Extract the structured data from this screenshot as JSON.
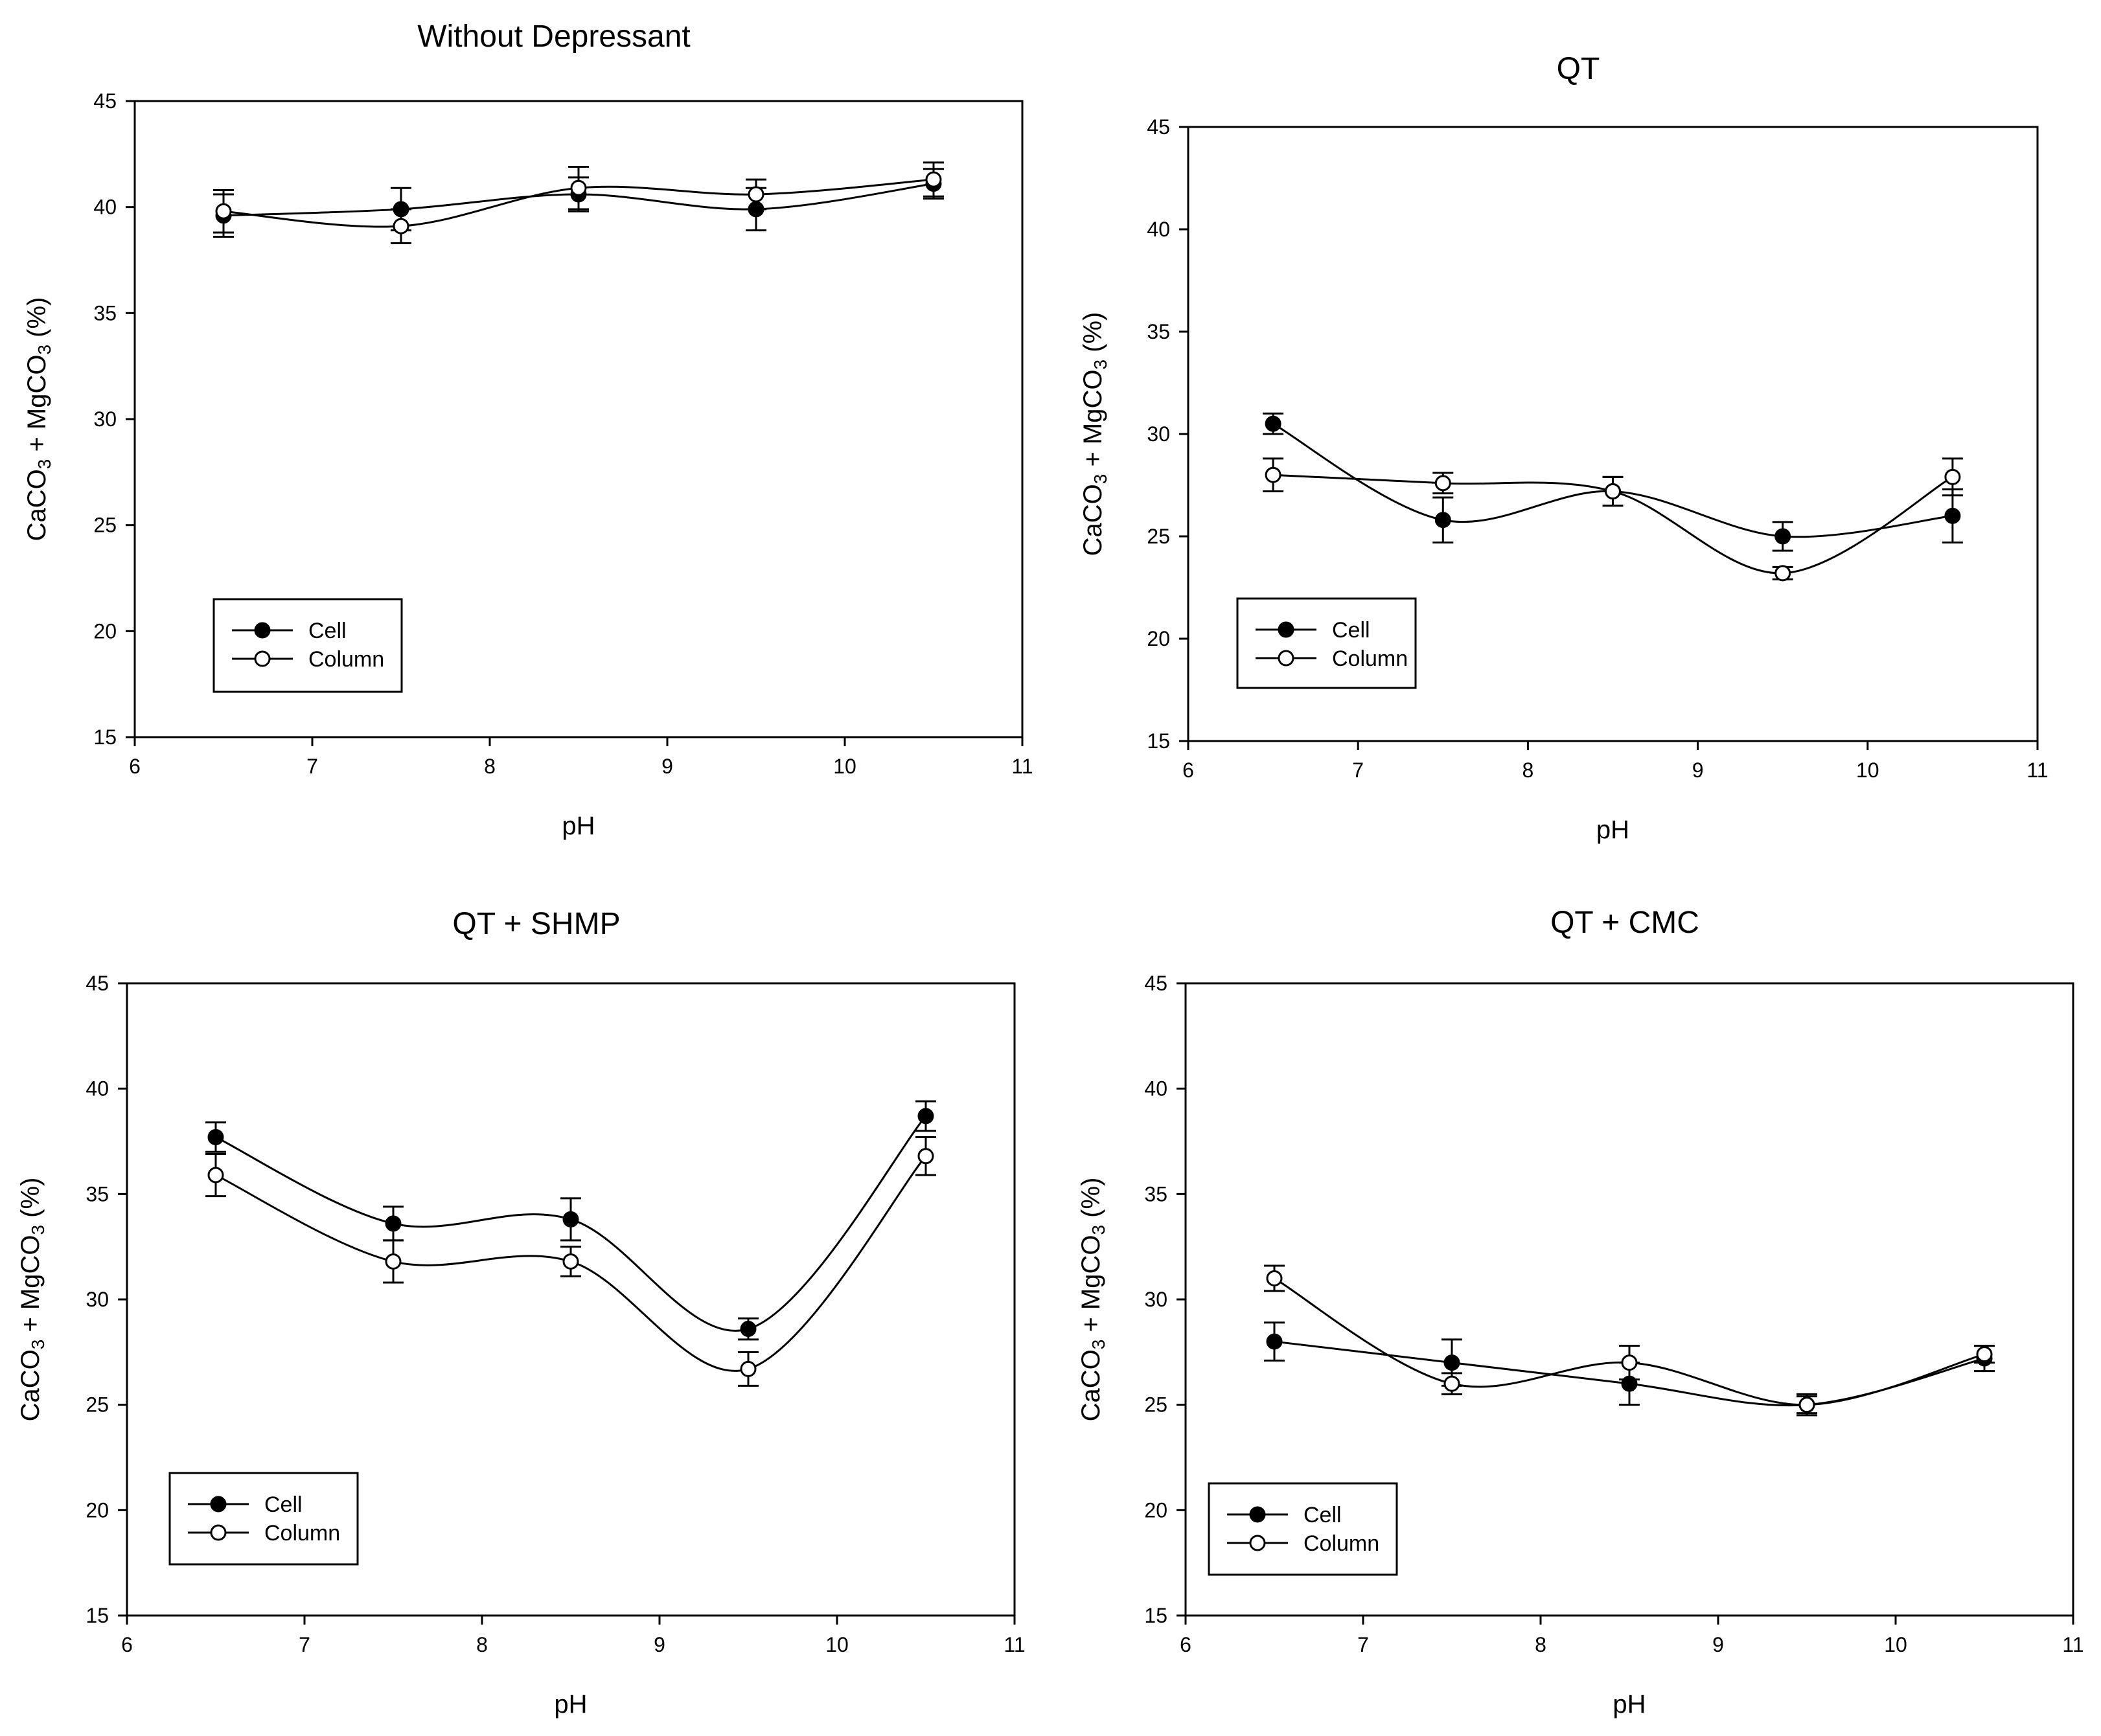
{
  "chart_data": [
    {
      "type": "line",
      "title": "Without Depressant",
      "xlabel": "pH",
      "ylabel": {
        "base": "CaCO",
        "sub1": "3",
        "mid": " + MgCO",
        "sub2": "3",
        "tail": " (%)"
      },
      "xlim": [
        6,
        11
      ],
      "ylim": [
        15,
        45
      ],
      "xticks": [
        "6",
        "7",
        "8",
        "9",
        "10",
        "11"
      ],
      "yticks": [
        "15",
        "20",
        "25",
        "30",
        "35",
        "40",
        "45"
      ],
      "legend": {
        "placement": "bottom-left",
        "entries": [
          "Cell",
          "Column"
        ]
      },
      "series": [
        {
          "name": "Cell",
          "marker": "filled-circle",
          "x": [
            6.5,
            7.5,
            8.5,
            9.5,
            10.5
          ],
          "y": [
            39.6,
            39.9,
            40.6,
            39.9,
            41.1
          ],
          "err": [
            1.0,
            1.0,
            0.8,
            1.0,
            0.7
          ]
        },
        {
          "name": "Column",
          "marker": "open-circle",
          "x": [
            6.5,
            7.5,
            8.5,
            9.5,
            10.5
          ],
          "y": [
            39.8,
            39.1,
            40.9,
            40.6,
            41.3
          ],
          "err": [
            1.0,
            0.8,
            1.0,
            0.7,
            0.8
          ]
        }
      ]
    },
    {
      "type": "line",
      "title": "QT",
      "xlabel": "pH",
      "ylabel": {
        "base": "CaCO",
        "sub1": "3",
        "mid": " + MgCO",
        "sub2": "3",
        "tail": " (%)"
      },
      "xlim": [
        6,
        11
      ],
      "ylim": [
        15,
        45
      ],
      "xticks": [
        "6",
        "7",
        "8",
        "9",
        "10",
        "11"
      ],
      "yticks": [
        "15",
        "20",
        "25",
        "30",
        "35",
        "40",
        "45"
      ],
      "legend": {
        "placement": "bottom-left",
        "entries": [
          "Cell",
          "Column"
        ]
      },
      "series": [
        {
          "name": "Cell",
          "marker": "filled-circle",
          "x": [
            6.5,
            7.5,
            8.5,
            9.5,
            10.5
          ],
          "y": [
            30.5,
            25.8,
            27.2,
            25.0,
            26.0
          ],
          "err": [
            0.5,
            1.1,
            0.7,
            0.7,
            1.3
          ]
        },
        {
          "name": "Column",
          "marker": "open-circle",
          "x": [
            6.5,
            7.5,
            8.5,
            9.5,
            10.5
          ],
          "y": [
            28.0,
            27.6,
            27.2,
            23.2,
            27.9
          ],
          "err": [
            0.8,
            0.5,
            0.7,
            0.3,
            0.9
          ]
        }
      ]
    },
    {
      "type": "line",
      "title": "QT + SHMP",
      "xlabel": "pH",
      "ylabel": {
        "base": "CaCO",
        "sub1": "3",
        "mid": " + MgCO",
        "sub2": "3",
        "tail": " (%)"
      },
      "xlim": [
        6,
        11
      ],
      "ylim": [
        15,
        45
      ],
      "xticks": [
        "6",
        "7",
        "8",
        "9",
        "10",
        "11"
      ],
      "yticks": [
        "15",
        "20",
        "25",
        "30",
        "35",
        "40",
        "45"
      ],
      "legend": {
        "placement": "bottom-left",
        "entries": [
          "Cell",
          "Column"
        ]
      },
      "series": [
        {
          "name": "Cell",
          "marker": "filled-circle",
          "x": [
            6.5,
            7.5,
            8.5,
            9.5,
            10.5
          ],
          "y": [
            37.7,
            33.6,
            33.8,
            28.6,
            38.7
          ],
          "err": [
            0.7,
            0.8,
            1.0,
            0.5,
            0.7
          ]
        },
        {
          "name": "Column",
          "marker": "open-circle",
          "x": [
            6.5,
            7.5,
            8.5,
            9.5,
            10.5
          ],
          "y": [
            35.9,
            31.8,
            31.8,
            26.7,
            36.8
          ],
          "err": [
            1.0,
            1.0,
            0.7,
            0.8,
            0.9
          ]
        }
      ]
    },
    {
      "type": "line",
      "title": "QT + CMC",
      "xlabel": "pH",
      "ylabel": {
        "base": "CaCO",
        "sub1": "3",
        "mid": " + MgCO",
        "sub2": "3",
        "tail": " (%)"
      },
      "xlim": [
        6,
        11
      ],
      "ylim": [
        15,
        45
      ],
      "xticks": [
        "6",
        "7",
        "8",
        "9",
        "10",
        "11"
      ],
      "yticks": [
        "15",
        "20",
        "25",
        "30",
        "35",
        "40",
        "45"
      ],
      "legend": {
        "placement": "bottom-left",
        "entries": [
          "Cell",
          "Column"
        ]
      },
      "series": [
        {
          "name": "Cell",
          "marker": "filled-circle",
          "x": [
            6.5,
            7.5,
            8.5,
            9.5,
            10.5
          ],
          "y": [
            28.0,
            27.0,
            26.0,
            25.0,
            27.2
          ],
          "err": [
            0.9,
            1.1,
            1.0,
            0.4,
            0.6
          ]
        },
        {
          "name": "Column",
          "marker": "open-circle",
          "x": [
            6.5,
            7.5,
            8.5,
            9.5,
            10.5
          ],
          "y": [
            31.0,
            26.0,
            27.0,
            25.0,
            27.4
          ],
          "err": [
            0.6,
            0.5,
            0.8,
            0.5,
            0.4
          ]
        }
      ]
    }
  ]
}
